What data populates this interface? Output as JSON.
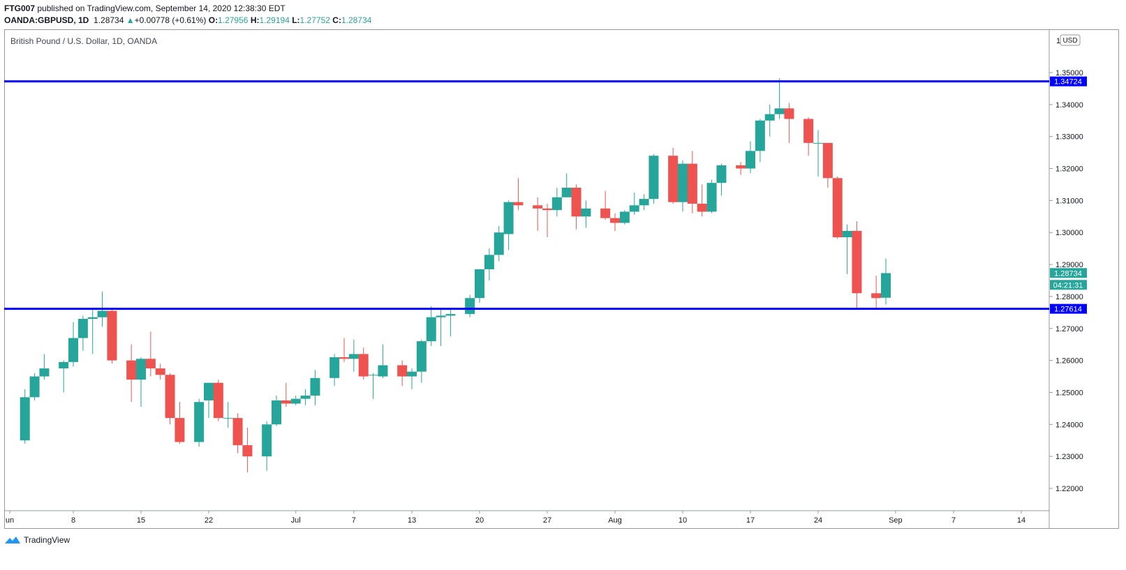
{
  "header": {
    "author": "FTG007",
    "published": "published on TradingView.com, September 14, 2020 12:38:30 EDT",
    "symbol": "OANDA:GBPUSD, 1D",
    "last": "1.28734",
    "change_arrow": "▲",
    "change": "+0.00778 (+0.61%)",
    "o_label": "O:",
    "o_value": "1.27956",
    "h_label": "H:",
    "h_value": "1.29194",
    "l_label": "L:",
    "l_value": "1.27752",
    "c_label": "C:",
    "c_value": "1.28734"
  },
  "footer": {
    "brand": "TradingView",
    "logo_icon": "tradingview-logo-icon"
  },
  "colors": {
    "up": "#26a69a",
    "down": "#ef5350",
    "hline": "#0000ff",
    "grid": "#e0e3eb",
    "axis_text": "#131722"
  },
  "chart_data": {
    "type": "candlestick",
    "title": "British Pound / U.S. Dollar, 1D, OANDA",
    "currency_badge": "USD",
    "y_range": [
      1.215,
      1.36
    ],
    "y_ticks": [
      "1.35000",
      "1.34000",
      "1.33000",
      "1.32000",
      "1.31000",
      "1.30000",
      "1.29000",
      "1.28000",
      "1.27000",
      "1.26000",
      "1.25000",
      "1.24000",
      "1.23000",
      "1.22000"
    ],
    "y_top_partial": "1",
    "x_labels": [
      {
        "label": "un",
        "date": "2020-06-04"
      },
      {
        "label": "8",
        "date": "2020-06-08"
      },
      {
        "label": "15",
        "date": "2020-06-15"
      },
      {
        "label": "22",
        "date": "2020-06-22"
      },
      {
        "label": "Jul",
        "date": "2020-07-01"
      },
      {
        "label": "7",
        "date": "2020-07-07"
      },
      {
        "label": "13",
        "date": "2020-07-13"
      },
      {
        "label": "20",
        "date": "2020-07-20"
      },
      {
        "label": "27",
        "date": "2020-07-27"
      },
      {
        "label": "Aug",
        "date": "2020-08-03"
      },
      {
        "label": "10",
        "date": "2020-08-10"
      },
      {
        "label": "17",
        "date": "2020-08-17"
      },
      {
        "label": "24",
        "date": "2020-08-24"
      },
      {
        "label": "Sep",
        "date": "2020-09-01"
      },
      {
        "label": "7",
        "date": "2020-09-07"
      },
      {
        "label": "14",
        "date": "2020-09-14"
      }
    ],
    "horizontal_lines": [
      {
        "value": "1.34724"
      },
      {
        "value": "1.27614"
      }
    ],
    "last_price_label": "1.28734",
    "countdown_label": "04:21:31",
    "candles": [
      {
        "date": "2020-06-03",
        "o": 1.235,
        "h": 1.251,
        "l": 1.234,
        "c": 1.2485
      },
      {
        "date": "2020-06-04",
        "o": 1.2485,
        "h": 1.256,
        "l": 1.2475,
        "c": 1.255
      },
      {
        "date": "2020-06-05",
        "o": 1.255,
        "h": 1.262,
        "l": 1.254,
        "c": 1.2575
      },
      {
        "date": "2020-06-07",
        "o": 1.2575,
        "h": 1.26,
        "l": 1.25,
        "c": 1.2595
      },
      {
        "date": "2020-06-08",
        "o": 1.2595,
        "h": 1.272,
        "l": 1.258,
        "c": 1.267
      },
      {
        "date": "2020-06-09",
        "o": 1.267,
        "h": 1.274,
        "l": 1.263,
        "c": 1.273
      },
      {
        "date": "2020-06-10",
        "o": 1.273,
        "h": 1.2765,
        "l": 1.262,
        "c": 1.2735
      },
      {
        "date": "2020-06-11",
        "o": 1.2735,
        "h": 1.2815,
        "l": 1.2705,
        "c": 1.2755
      },
      {
        "date": "2020-06-12",
        "o": 1.2755,
        "h": 1.2765,
        "l": 1.259,
        "c": 1.26
      },
      {
        "date": "2020-06-14",
        "o": 1.26,
        "h": 1.265,
        "l": 1.247,
        "c": 1.254
      },
      {
        "date": "2020-06-15",
        "o": 1.254,
        "h": 1.261,
        "l": 1.2455,
        "c": 1.2605
      },
      {
        "date": "2020-06-16",
        "o": 1.2605,
        "h": 1.269,
        "l": 1.255,
        "c": 1.2575
      },
      {
        "date": "2020-06-17",
        "o": 1.2575,
        "h": 1.259,
        "l": 1.254,
        "c": 1.2555
      },
      {
        "date": "2020-06-18",
        "o": 1.2555,
        "h": 1.256,
        "l": 1.24,
        "c": 1.242
      },
      {
        "date": "2020-06-19",
        "o": 1.242,
        "h": 1.247,
        "l": 1.234,
        "c": 1.2345
      },
      {
        "date": "2020-06-21",
        "o": 1.2345,
        "h": 1.248,
        "l": 1.233,
        "c": 1.247
      },
      {
        "date": "2020-06-22",
        "o": 1.2475,
        "h": 1.253,
        "l": 1.242,
        "c": 1.253
      },
      {
        "date": "2020-06-23",
        "o": 1.253,
        "h": 1.254,
        "l": 1.241,
        "c": 1.242
      },
      {
        "date": "2020-06-24",
        "o": 1.242,
        "h": 1.247,
        "l": 1.239,
        "c": 1.242
      },
      {
        "date": "2020-06-25",
        "o": 1.242,
        "h": 1.2435,
        "l": 1.231,
        "c": 1.2335
      },
      {
        "date": "2020-06-26",
        "o": 1.2335,
        "h": 1.239,
        "l": 1.225,
        "c": 1.23
      },
      {
        "date": "2020-06-28",
        "o": 1.23,
        "h": 1.241,
        "l": 1.2255,
        "c": 1.24
      },
      {
        "date": "2020-06-29",
        "o": 1.24,
        "h": 1.249,
        "l": 1.2395,
        "c": 1.2475
      },
      {
        "date": "2020-06-30",
        "o": 1.2475,
        "h": 1.253,
        "l": 1.2455,
        "c": 1.2465
      },
      {
        "date": "2020-07-01",
        "o": 1.2465,
        "h": 1.249,
        "l": 1.246,
        "c": 1.248
      },
      {
        "date": "2020-07-02",
        "o": 1.248,
        "h": 1.251,
        "l": 1.246,
        "c": 1.249
      },
      {
        "date": "2020-07-03",
        "o": 1.249,
        "h": 1.257,
        "l": 1.246,
        "c": 1.2545
      },
      {
        "date": "2020-07-05",
        "o": 1.2545,
        "h": 1.262,
        "l": 1.252,
        "c": 1.261
      },
      {
        "date": "2020-07-06",
        "o": 1.261,
        "h": 1.267,
        "l": 1.2595,
        "c": 1.2605
      },
      {
        "date": "2020-07-07",
        "o": 1.2605,
        "h": 1.2665,
        "l": 1.2565,
        "c": 1.262
      },
      {
        "date": "2020-07-08",
        "o": 1.262,
        "h": 1.264,
        "l": 1.254,
        "c": 1.255
      },
      {
        "date": "2020-07-09",
        "o": 1.2555,
        "h": 1.256,
        "l": 1.248,
        "c": 1.2555
      },
      {
        "date": "2020-07-10",
        "o": 1.255,
        "h": 1.265,
        "l": 1.2545,
        "c": 1.2585
      },
      {
        "date": "2020-07-12",
        "o": 1.2585,
        "h": 1.26,
        "l": 1.252,
        "c": 1.255
      },
      {
        "date": "2020-07-13",
        "o": 1.255,
        "h": 1.2575,
        "l": 1.251,
        "c": 1.2565
      },
      {
        "date": "2020-07-14",
        "o": 1.2565,
        "h": 1.2665,
        "l": 1.253,
        "c": 1.266
      },
      {
        "date": "2020-07-15",
        "o": 1.266,
        "h": 1.277,
        "l": 1.2645,
        "c": 1.2735
      },
      {
        "date": "2020-07-16",
        "o": 1.2735,
        "h": 1.276,
        "l": 1.2645,
        "c": 1.274
      },
      {
        "date": "2020-07-17",
        "o": 1.274,
        "h": 1.276,
        "l": 1.2675,
        "c": 1.2745
      },
      {
        "date": "2020-07-19",
        "o": 1.2745,
        "h": 1.2805,
        "l": 1.2735,
        "c": 1.2795
      },
      {
        "date": "2020-07-20",
        "o": 1.2795,
        "h": 1.288,
        "l": 1.278,
        "c": 1.2885
      },
      {
        "date": "2020-07-21",
        "o": 1.2885,
        "h": 1.295,
        "l": 1.285,
        "c": 1.293
      },
      {
        "date": "2020-07-22",
        "o": 1.293,
        "h": 1.302,
        "l": 1.291,
        "c": 1.3
      },
      {
        "date": "2020-07-23",
        "o": 1.2995,
        "h": 1.31,
        "l": 1.2945,
        "c": 1.3095
      },
      {
        "date": "2020-07-24",
        "o": 1.3095,
        "h": 1.317,
        "l": 1.307,
        "c": 1.3085
      },
      {
        "date": "2020-07-26",
        "o": 1.3085,
        "h": 1.311,
        "l": 1.3005,
        "c": 1.3075
      },
      {
        "date": "2020-07-27",
        "o": 1.3075,
        "h": 1.309,
        "l": 1.2985,
        "c": 1.307
      },
      {
        "date": "2020-07-28",
        "o": 1.307,
        "h": 1.314,
        "l": 1.305,
        "c": 1.311
      },
      {
        "date": "2020-07-29",
        "o": 1.311,
        "h": 1.3185,
        "l": 1.311,
        "c": 1.314
      },
      {
        "date": "2020-07-30",
        "o": 1.314,
        "h": 1.315,
        "l": 1.301,
        "c": 1.305
      },
      {
        "date": "2020-07-31",
        "o": 1.305,
        "h": 1.31,
        "l": 1.3015,
        "c": 1.3075
      },
      {
        "date": "2020-08-02",
        "o": 1.3075,
        "h": 1.313,
        "l": 1.304,
        "c": 1.3045
      },
      {
        "date": "2020-08-03",
        "o": 1.3045,
        "h": 1.306,
        "l": 1.3005,
        "c": 1.303
      },
      {
        "date": "2020-08-04",
        "o": 1.303,
        "h": 1.307,
        "l": 1.3025,
        "c": 1.3065
      },
      {
        "date": "2020-08-05",
        "o": 1.3065,
        "h": 1.3125,
        "l": 1.3055,
        "c": 1.3085
      },
      {
        "date": "2020-08-06",
        "o": 1.3085,
        "h": 1.312,
        "l": 1.307,
        "c": 1.3105
      },
      {
        "date": "2020-08-07",
        "o": 1.3105,
        "h": 1.3245,
        "l": 1.309,
        "c": 1.324
      },
      {
        "date": "2020-08-09",
        "o": 1.324,
        "h": 1.3265,
        "l": 1.309,
        "c": 1.3095
      },
      {
        "date": "2020-08-10",
        "o": 1.3095,
        "h": 1.3225,
        "l": 1.3065,
        "c": 1.3215
      },
      {
        "date": "2020-08-11",
        "o": 1.3215,
        "h": 1.3255,
        "l": 1.306,
        "c": 1.309
      },
      {
        "date": "2020-08-12",
        "o": 1.309,
        "h": 1.315,
        "l": 1.305,
        "c": 1.3065
      },
      {
        "date": "2020-08-13",
        "o": 1.3065,
        "h": 1.3165,
        "l": 1.306,
        "c": 1.3155
      },
      {
        "date": "2020-08-14",
        "o": 1.3155,
        "h": 1.3215,
        "l": 1.3115,
        "c": 1.321
      },
      {
        "date": "2020-08-16",
        "o": 1.321,
        "h": 1.322,
        "l": 1.318,
        "c": 1.32
      },
      {
        "date": "2020-08-17",
        "o": 1.32,
        "h": 1.3285,
        "l": 1.3185,
        "c": 1.3255
      },
      {
        "date": "2020-08-18",
        "o": 1.3255,
        "h": 1.3355,
        "l": 1.322,
        "c": 1.335
      },
      {
        "date": "2020-08-19",
        "o": 1.335,
        "h": 1.34,
        "l": 1.33,
        "c": 1.337
      },
      {
        "date": "2020-08-20",
        "o": 1.337,
        "h": 1.3482,
        "l": 1.3355,
        "c": 1.3388
      },
      {
        "date": "2020-08-21",
        "o": 1.3388,
        "h": 1.3405,
        "l": 1.328,
        "c": 1.3355
      },
      {
        "date": "2020-08-23",
        "o": 1.3355,
        "h": 1.336,
        "l": 1.324,
        "c": 1.328
      },
      {
        "date": "2020-08-24",
        "o": 1.328,
        "h": 1.332,
        "l": 1.3175,
        "c": 1.328
      },
      {
        "date": "2020-08-25",
        "o": 1.328,
        "h": 1.328,
        "l": 1.314,
        "c": 1.317
      },
      {
        "date": "2020-08-26",
        "o": 1.317,
        "h": 1.3175,
        "l": 1.298,
        "c": 1.2985
      },
      {
        "date": "2020-08-27",
        "o": 1.2985,
        "h": 1.3025,
        "l": 1.287,
        "c": 1.3005
      },
      {
        "date": "2020-08-28",
        "o": 1.3005,
        "h": 1.3035,
        "l": 1.2765,
        "c": 1.281
      },
      {
        "date": "2020-08-30",
        "o": 1.281,
        "h": 1.2865,
        "l": 1.2765,
        "c": 1.2795
      },
      {
        "date": "2020-08-31",
        "o": 1.2796,
        "h": 1.2919,
        "l": 1.2775,
        "c": 1.2873
      }
    ]
  }
}
